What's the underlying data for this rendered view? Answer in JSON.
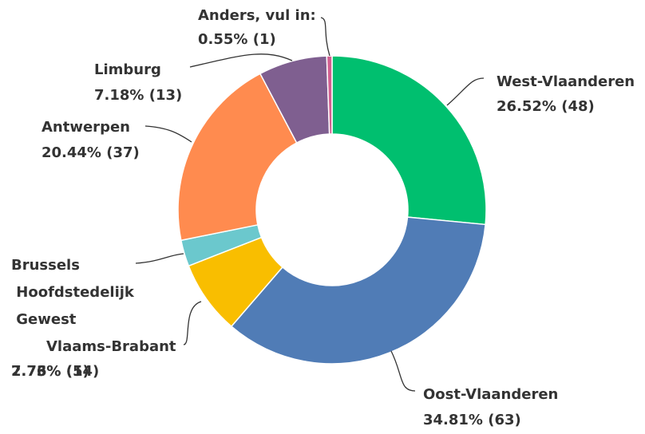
{
  "chart_data": {
    "type": "donut",
    "categories": [
      "West-Vlaanderen",
      "Oost-Vlaanderen",
      "Vlaams-Brabant",
      "Brussels Hoofdstedelijk Gewest",
      "Antwerpen",
      "Limburg",
      "Anders, vul in:"
    ],
    "values": [
      26.52,
      34.81,
      7.73,
      2.76,
      20.44,
      7.18,
      0.55
    ],
    "value_labels": [
      "26.52% (48)",
      "34.81% (63)",
      "7.73% (14)",
      "2.76% (5)",
      "20.44% (37)",
      "7.18% (13)",
      "0.55% (1)"
    ],
    "colors": [
      "#00bf6f",
      "#507cb6",
      "#f9be00",
      "#6bc8cd",
      "#ff8b4f",
      "#7f5f90",
      "#d25f90"
    ]
  }
}
